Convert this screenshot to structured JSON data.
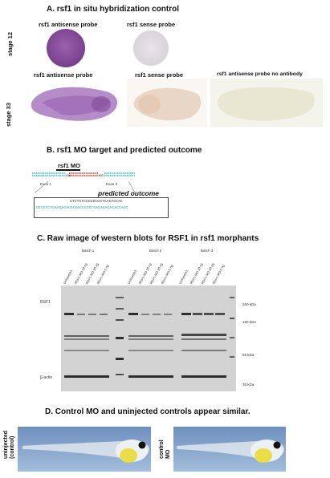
{
  "sectionA": {
    "title": "A. rsf1 in situ hybridization control",
    "stage12_label": "stage 12",
    "stage33_label": "stage  33",
    "panels": [
      {
        "label": "rsf1 antisense probe",
        "color": "#8a4f9c"
      },
      {
        "label": "rsf1 sense probe",
        "color": "#e3dfe3"
      },
      {
        "label": "rsf1 antisense probe",
        "color": "#a070b8"
      },
      {
        "label": "rsf1 sense probe",
        "color": "#ead9cc"
      },
      {
        "label": "rsf1 antisense probe no antibody",
        "color": "#eeecd9"
      }
    ]
  },
  "sectionB": {
    "title": "B. rsf1 MO target and predicted outcome",
    "mo_label": "rsf1 MO",
    "exon1": "Exon 1",
    "exon3": "Exon 3",
    "predicted": "predicted outcome",
    "seq1": "GTCTGTCGGGGCGGTGAGTGCAC",
    "seq2": "CCCGTCTCAAGAGACCCGGCCGTCTCAGAGACAGACCAGC"
  },
  "sectionC": {
    "title": "C. Raw image of western blots for RSF1 in rsf1 morphants",
    "batches": [
      "Batch 1",
      "Batch 2",
      "Batch 3"
    ],
    "lanes": [
      "Uninjected",
      "RSF1 MO 10 ng",
      "RSF1 MO 20 ng",
      "RSF1 MO 5 ng"
    ],
    "rsf1_label": "RSF1",
    "actin_label": "β-actin",
    "mw": [
      "250 kDa",
      "150 kDa",
      "55 kDa",
      "35 kDa"
    ]
  },
  "sectionD": {
    "title": "D. Control MO and uninjected controls  appear similar.",
    "left_label_1": "uninjected",
    "left_label_2": "(control)",
    "right_label_1": "control",
    "right_label_2": "MO"
  },
  "colors": {
    "purple_stain": "#8a4f9c",
    "blot_bg": "#d4d4d4",
    "band": "#2a2a2a",
    "tadpole_bg": "#8aa6c8"
  }
}
